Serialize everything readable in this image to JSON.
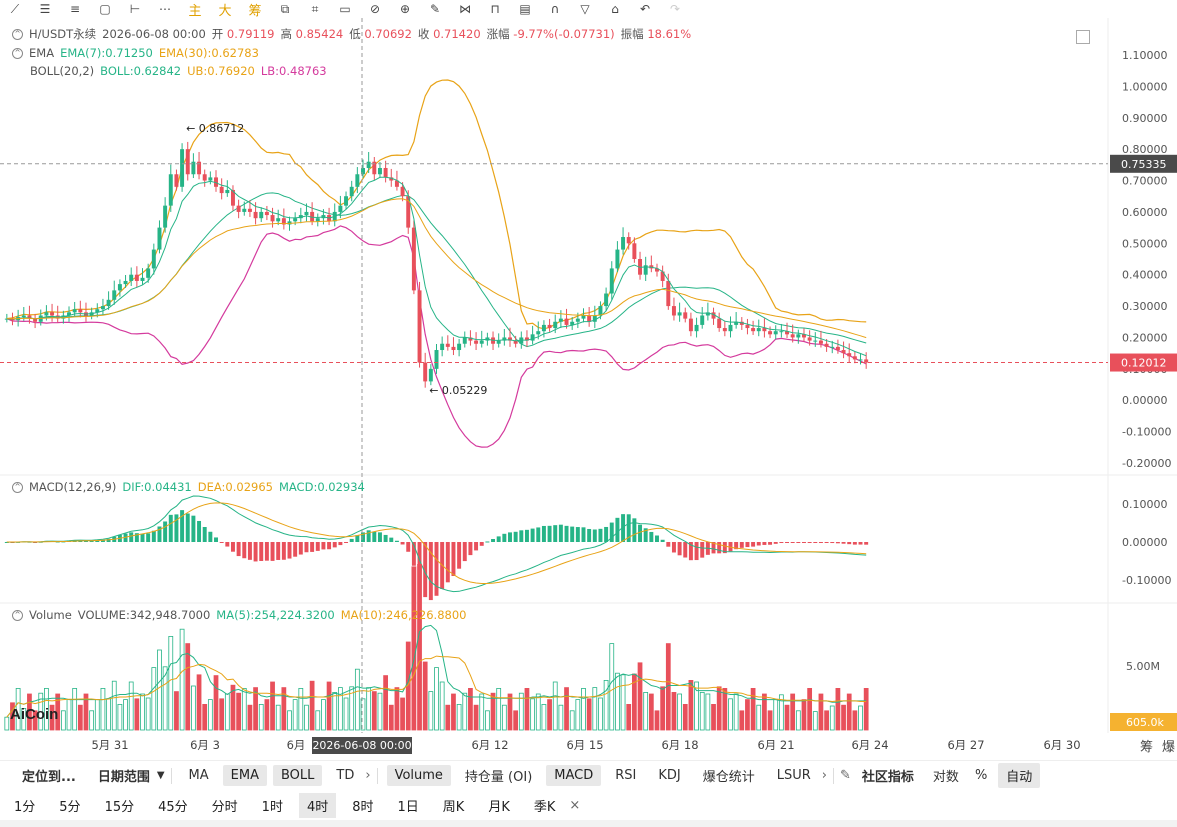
{
  "toolbar": {
    "tools": [
      "line-tool-icon",
      "hline-tool-icon",
      "channel-tool-icon",
      "rect-tool-icon",
      "price-range-icon",
      "more-tools-icon"
    ],
    "text_tools": [
      "主",
      "大",
      "筹"
    ],
    "icons": [
      "copy-icon",
      "measure-icon",
      "zoom-in-icon",
      "brush-icon",
      "pattern-icon",
      "lock-icon",
      "note-icon",
      "magnet-icon",
      "filter-icon",
      "trash-icon",
      "undo-icon",
      "redo-icon"
    ]
  },
  "legend": {
    "symbol": "H/USDT永续",
    "datetime": "2026-06-08 00:00",
    "open_label": "开",
    "open": "0.79119",
    "high_label": "高",
    "high": "0.85424",
    "low_label": "低",
    "low": "0.70692",
    "close_label": "收",
    "close": "0.71420",
    "change_label": "涨幅",
    "change": "-9.77%(-0.07731)",
    "amp_label": "振幅",
    "amp": "18.61%",
    "ema_name": "EMA",
    "ema7": "EMA(7):0.71250",
    "ema30": "EMA(30):0.62783",
    "boll_name": "BOLL(20,2)",
    "boll": "BOLL:0.62842",
    "ub": "UB:0.76920",
    "lb": "LB:0.48763",
    "macd_name": "MACD(12,26,9)",
    "dif": "DIF:0.04431",
    "dea": "DEA:0.02965",
    "macd": "MACD:0.02934",
    "vol_name": "Volume",
    "volume": "VOLUME:342,948.7000",
    "ma5": "MA(5):254,224.3200",
    "ma10": "MA(10):246,226.8800"
  },
  "price_axis": {
    "labels": [
      "1.10000",
      "1.00000",
      "0.90000",
      "0.80000",
      "0.70000",
      "0.60000",
      "0.50000",
      "0.40000",
      "0.30000",
      "0.20000",
      "0.10000",
      "0.00000",
      "-0.10000",
      "-0.20000"
    ],
    "crosshair_value": "0.75335",
    "last_value": "0.12012"
  },
  "macd_axis": {
    "labels": [
      "0.10000",
      "0.00000",
      "-0.10000"
    ]
  },
  "vol_axis": {
    "labels": [
      "5.00M"
    ],
    "last_value": "605.0k"
  },
  "annotations": {
    "high": "0.86712",
    "low": "0.05229"
  },
  "time_axis": {
    "labels": [
      "5月 31",
      "6月 3",
      "6月",
      "6月 12",
      "6月 15",
      "6月 18",
      "6月 21",
      "6月 24",
      "6月 27",
      "6月 30"
    ],
    "crosshair": "2026-06-08 00:00",
    "right_icons": [
      "筹",
      "爆"
    ]
  },
  "watermark": "AiCoin",
  "indicator_bar": {
    "locate": "定位到...",
    "range": "日期范围",
    "main": [
      "MA",
      "EMA",
      "BOLL",
      "TD"
    ],
    "sub": [
      "Volume",
      "持仓量 (OI)",
      "MACD",
      "RSI",
      "KDJ",
      "爆仓统计",
      "LSUR"
    ],
    "community": "社区指标",
    "log": "对数",
    "pct": "%",
    "auto": "自动"
  },
  "timeframes": [
    "1分",
    "5分",
    "15分",
    "45分",
    "分时",
    "1时",
    "4时",
    "8时",
    "1日",
    "周K",
    "月K",
    "季K"
  ],
  "active_timeframe": "4时",
  "colors": {
    "up": "#26b487",
    "down": "#e8505b",
    "ema7": "#26b487",
    "ema30": "#e8a317",
    "boll_mid": "#26b487",
    "boll_ub": "#e8a317",
    "boll_lb": "#d43a9d"
  },
  "chart_data": {
    "type": "candlestick",
    "symbol": "H/USDT永续",
    "interval": "4时",
    "ylim": [
      -0.2,
      1.1
    ],
    "close_path": [
      0.26,
      0.255,
      0.265,
      0.27,
      0.26,
      0.25,
      0.27,
      0.28,
      0.27,
      0.26,
      0.27,
      0.28,
      0.29,
      0.28,
      0.27,
      0.28,
      0.29,
      0.3,
      0.32,
      0.35,
      0.37,
      0.38,
      0.4,
      0.38,
      0.39,
      0.42,
      0.48,
      0.55,
      0.62,
      0.72,
      0.68,
      0.8,
      0.72,
      0.76,
      0.72,
      0.7,
      0.71,
      0.68,
      0.66,
      0.67,
      0.62,
      0.6,
      0.61,
      0.6,
      0.58,
      0.6,
      0.59,
      0.57,
      0.58,
      0.56,
      0.57,
      0.58,
      0.59,
      0.6,
      0.57,
      0.58,
      0.59,
      0.57,
      0.6,
      0.62,
      0.65,
      0.68,
      0.72,
      0.74,
      0.76,
      0.72,
      0.74,
      0.71,
      0.7,
      0.68,
      0.65,
      0.55,
      0.35,
      0.12,
      0.06,
      0.1,
      0.16,
      0.18,
      0.17,
      0.16,
      0.18,
      0.2,
      0.19,
      0.18,
      0.19,
      0.2,
      0.18,
      0.19,
      0.2,
      0.19,
      0.18,
      0.2,
      0.19,
      0.21,
      0.22,
      0.24,
      0.23,
      0.25,
      0.26,
      0.24,
      0.25,
      0.26,
      0.27,
      0.25,
      0.27,
      0.3,
      0.34,
      0.42,
      0.48,
      0.52,
      0.5,
      0.45,
      0.4,
      0.43,
      0.42,
      0.41,
      0.38,
      0.3,
      0.27,
      0.28,
      0.26,
      0.22,
      0.24,
      0.27,
      0.28,
      0.26,
      0.23,
      0.22,
      0.24,
      0.25,
      0.24,
      0.23,
      0.22,
      0.23,
      0.22,
      0.21,
      0.22,
      0.22,
      0.21,
      0.2,
      0.21,
      0.2,
      0.19,
      0.19,
      0.18,
      0.17,
      0.17,
      0.16,
      0.15,
      0.14,
      0.13,
      0.13,
      0.12
    ],
    "extremes": {
      "high": 0.86712,
      "low": 0.05229
    },
    "last": 0.12012
  }
}
